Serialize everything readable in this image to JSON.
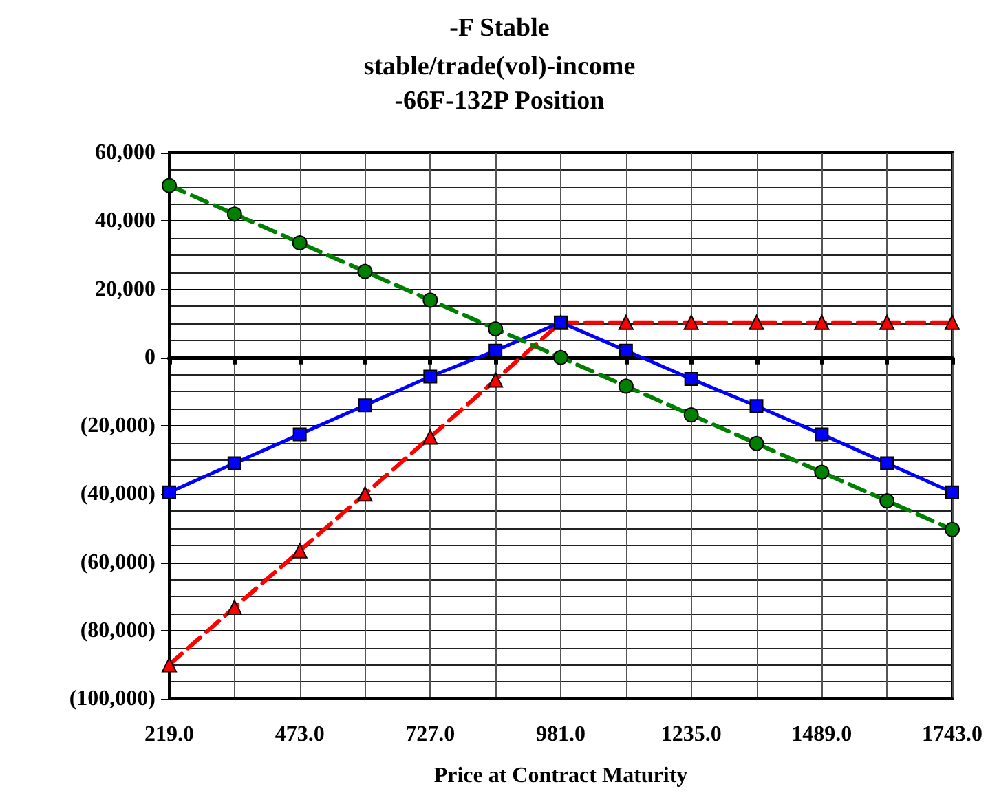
{
  "chart_data": {
    "type": "line",
    "title": "-F Stable",
    "subtitle": "stable/trade(vol)-income\n-66F-132P Position",
    "xlabel": "Price at Contract Maturity",
    "x": [
      219,
      346,
      473,
      600,
      727,
      854,
      981,
      1108,
      1235,
      1362,
      1489,
      1616,
      1743
    ],
    "series": [
      {
        "color": "#008000",
        "marker": "circle",
        "line_style": "dashed",
        "values": [
          50400,
          42000,
          33600,
          25200,
          16800,
          8400,
          0,
          -8400,
          -16800,
          -25200,
          -33600,
          -42000,
          -50400
        ]
      },
      {
        "color": "#0000ff",
        "marker": "square",
        "line_style": "solid",
        "values": [
          -39500,
          -31000,
          -22500,
          -14000,
          -5600,
          2000,
          10300,
          2000,
          -6300,
          -14200,
          -22500,
          -31000,
          -39500
        ]
      },
      {
        "color": "#ff0000",
        "marker": "triangle",
        "line_style": "dashed",
        "values": [
          -90000,
          -73200,
          -56600,
          -40000,
          -23300,
          -6600,
          10300,
          10300,
          10300,
          10300,
          10300,
          10300,
          10300
        ]
      }
    ],
    "xlim": [
      219,
      1743
    ],
    "xticks": [
      {
        "value": 219,
        "label": "219.0"
      },
      {
        "value": 346,
        "label": null
      },
      {
        "value": 473,
        "label": "473.0"
      },
      {
        "value": 600,
        "label": null
      },
      {
        "value": 727,
        "label": "727.0"
      },
      {
        "value": 854,
        "label": null
      },
      {
        "value": 981,
        "label": "981.0"
      },
      {
        "value": 1108,
        "label": null
      },
      {
        "value": 1235,
        "label": "1235.0"
      },
      {
        "value": 1362,
        "label": null
      },
      {
        "value": 1489,
        "label": "1489.0"
      },
      {
        "value": 1616,
        "label": null
      },
      {
        "value": 1743,
        "label": "1743.0"
      }
    ],
    "ylim": [
      -100000,
      60000
    ],
    "yticks": [
      {
        "value": -100000,
        "label": "(100,000)"
      },
      {
        "value": -80000,
        "label": "(80,000)"
      },
      {
        "value": -60000,
        "label": "(60,000)"
      },
      {
        "value": -40000,
        "label": "(40,000)"
      },
      {
        "value": -20000,
        "label": "(20,000)"
      },
      {
        "value": 0,
        "label": "0"
      },
      {
        "value": 20000,
        "label": "20,000"
      },
      {
        "value": 40000,
        "label": "40,000"
      },
      {
        "value": 60000,
        "label": "60,000"
      }
    ],
    "grid": true
  }
}
